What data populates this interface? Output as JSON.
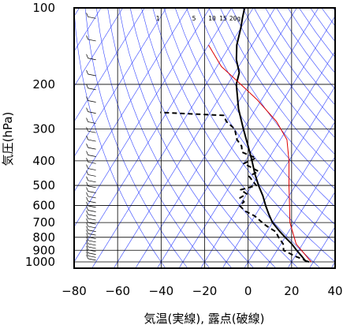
{
  "chart_data": {
    "type": "line",
    "title": "",
    "xlabel": "気温(実線), 露点(破線)",
    "ylabel": "気圧(hPa)",
    "xlim": [
      -80,
      40
    ],
    "ylim": [
      1050,
      100
    ],
    "y_scale": "log",
    "x_ticks": [
      "−80",
      "−60",
      "−40",
      "−20",
      "0",
      "20",
      "40"
    ],
    "x_tick_values": [
      -80,
      -60,
      -40,
      -20,
      0,
      20,
      40
    ],
    "y_ticks": [
      "100",
      "200",
      "300",
      "400",
      "500",
      "600",
      "700",
      "800",
      "900",
      "1000"
    ],
    "y_tick_values": [
      100,
      200,
      300,
      400,
      500,
      600,
      700,
      800,
      900,
      1000
    ],
    "mixing_ratio_labels": [
      "1",
      "5",
      "10",
      "15",
      "20g"
    ],
    "series": [
      {
        "style": "solid black",
        "points": [
          [
            28,
            1000
          ],
          [
            26,
            990
          ],
          [
            23,
            950
          ],
          [
            19,
            900
          ],
          [
            15,
            850
          ],
          [
            10,
            800
          ],
          [
            5,
            750
          ],
          [
            0,
            700
          ],
          [
            -4,
            650
          ],
          [
            -8,
            600
          ],
          [
            -12,
            550
          ],
          [
            -17,
            500
          ],
          [
            -22,
            450
          ],
          [
            -27,
            400
          ],
          [
            -33,
            350
          ],
          [
            -40,
            300
          ],
          [
            -48,
            250
          ],
          [
            -56,
            200
          ],
          [
            -58,
            180
          ],
          [
            -63,
            160
          ],
          [
            -67,
            140
          ],
          [
            -70,
            120
          ],
          [
            -72,
            110
          ],
          [
            -74,
            100
          ]
        ]
      },
      {
        "style": "dashed black",
        "points": [
          [
            27,
            1000
          ],
          [
            25,
            980
          ],
          [
            20,
            950
          ],
          [
            13,
            900
          ],
          [
            11,
            850
          ],
          [
            7,
            800
          ],
          [
            4,
            760
          ],
          [
            -2,
            720
          ],
          [
            -6,
            690
          ],
          [
            -10,
            660
          ],
          [
            -16,
            630
          ],
          [
            -20,
            600
          ],
          [
            -19,
            580
          ],
          [
            -22,
            560
          ],
          [
            -20,
            540
          ],
          [
            -24,
            520
          ],
          [
            -18,
            500
          ],
          [
            -21,
            480
          ],
          [
            -24,
            460
          ],
          [
            -21,
            440
          ],
          [
            -30,
            410
          ],
          [
            -26,
            390
          ],
          [
            -34,
            370
          ],
          [
            -36,
            350
          ],
          [
            -40,
            330
          ],
          [
            -44,
            300
          ],
          [
            -50,
            280
          ],
          [
            -53,
            265
          ],
          [
            -83,
            258
          ]
        ]
      },
      {
        "style": "solid red",
        "points": [
          [
            29,
            1000
          ],
          [
            17,
            850
          ],
          [
            8,
            700
          ],
          [
            3,
            600
          ],
          [
            -3,
            500
          ],
          [
            -10,
            400
          ],
          [
            -17,
            330
          ],
          [
            -27,
            280
          ],
          [
            -42,
            230
          ],
          [
            -54,
            200
          ],
          [
            -68,
            170
          ],
          [
            -80,
            140
          ]
        ]
      }
    ],
    "wind_barbs_x": -70
  }
}
